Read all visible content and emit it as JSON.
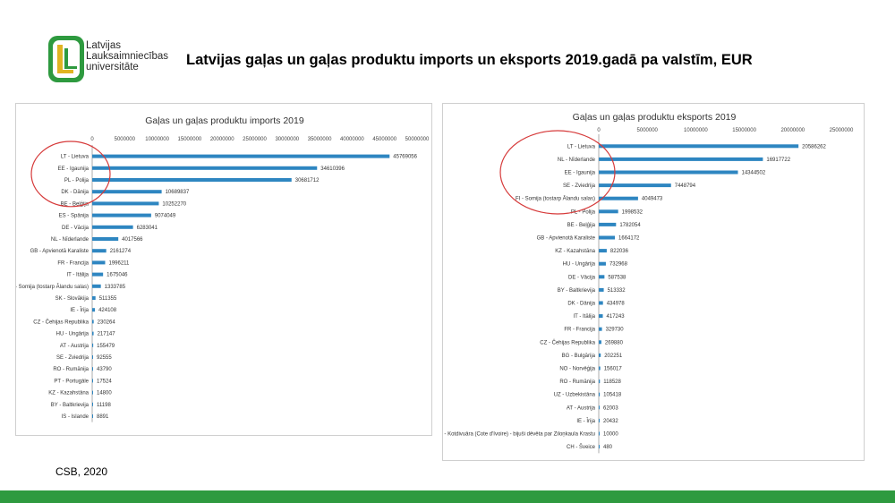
{
  "logo": {
    "line1": "Latvijas",
    "line2": "Lauksaimniecības",
    "line3": "universitāte",
    "colors": {
      "green": "#2e9a3f",
      "gold": "#e0b422"
    }
  },
  "slide_title": "Latvijas gaļas un gaļas produktu imports un eksports 2019.gadā pa valstīm, EUR",
  "source": "CSB, 2020",
  "colors": {
    "bar": "#2e86c1",
    "highlight": "#d63a3a",
    "footer": "#2e9a3f"
  },
  "chart_data": [
    {
      "type": "bar",
      "orientation": "horizontal",
      "title": "Gaļas un gaļas produktu imports 2019",
      "xlim": [
        0,
        50000000
      ],
      "xticks": [
        0,
        5000000,
        10000000,
        15000000,
        20000000,
        25000000,
        30000000,
        35000000,
        40000000,
        45000000,
        50000000
      ],
      "categories": [
        "LT - Lietuva",
        "EE - Igaunija",
        "PL - Polija",
        "DK - Dānija",
        "BE - Beļģija",
        "ES - Spānija",
        "DE - Vācija",
        "NL - Nīderlande",
        "GB - Apvienotā Karaliste",
        "FR - Francija",
        "IT - Itālija",
        "FI - Somija (tostarp Ālandu salas)",
        "SK - Slovākija",
        "IE - Īrija",
        "CZ - Čehijas Republika",
        "HU - Ungārija",
        "AT - Austrija",
        "SE - Zviedrija",
        "RO - Rumānija",
        "PT - Portugāle",
        "KZ - Kazahstāna",
        "BY - Baltkrievija",
        "IS - Islande"
      ],
      "values": [
        45769056,
        34610396,
        30681712,
        10689837,
        10252270,
        9074049,
        6283041,
        4017566,
        2161274,
        1996211,
        1675046,
        1333785,
        511355,
        424108,
        230264,
        217147,
        155479,
        92555,
        43790,
        17524,
        14800,
        11198,
        8891
      ],
      "highlighted_categories": [
        "LT - Lietuva",
        "EE - Igaunija",
        "PL - Polija",
        "DK - Dānija"
      ]
    },
    {
      "type": "bar",
      "orientation": "horizontal",
      "title": "Gaļas un gaļas produktu eksports 2019",
      "xlim": [
        0,
        25000000
      ],
      "xticks": [
        0,
        5000000,
        10000000,
        15000000,
        20000000,
        25000000
      ],
      "categories": [
        "LT - Lietuva",
        "NL - Nīderlande",
        "EE - Igaunija",
        "SE - Zviedrija",
        "FI - Somija (tostarp Ālandu salas)",
        "PL - Polija",
        "BE - Beļģija",
        "GB - Apvienotā Karaliste",
        "KZ - Kazahstāna",
        "HU - Ungārija",
        "DE - Vācija",
        "BY - Baltkrievija",
        "DK - Dānija",
        "IT - Itālija",
        "FR - Francija",
        "CZ - Čehijas Republika",
        "BG - Bulgārija",
        "NO - Norvēģija",
        "RO - Rumānija",
        "UZ - Uzbekistāna",
        "AT - Austrija",
        "IE - Īrija",
        "CI - Kotdivuāra (Cote d'Ivoire) - bijuši dēvēta par Ziloņkaula Krastu",
        "CH - Šveice"
      ],
      "values": [
        20586262,
        16917722,
        14344502,
        7448794,
        4049473,
        1998532,
        1782054,
        1664172,
        822036,
        732968,
        587538,
        513332,
        434978,
        417243,
        329730,
        269880,
        202251,
        156017,
        118528,
        105418,
        62003,
        20432,
        10000,
        480
      ],
      "highlighted_categories": [
        "LT - Lietuva",
        "NL - Nīderlande",
        "EE - Igaunija",
        "SE - Zviedrija",
        "FI - Somija (tostarp Ālandu salas)"
      ]
    }
  ]
}
